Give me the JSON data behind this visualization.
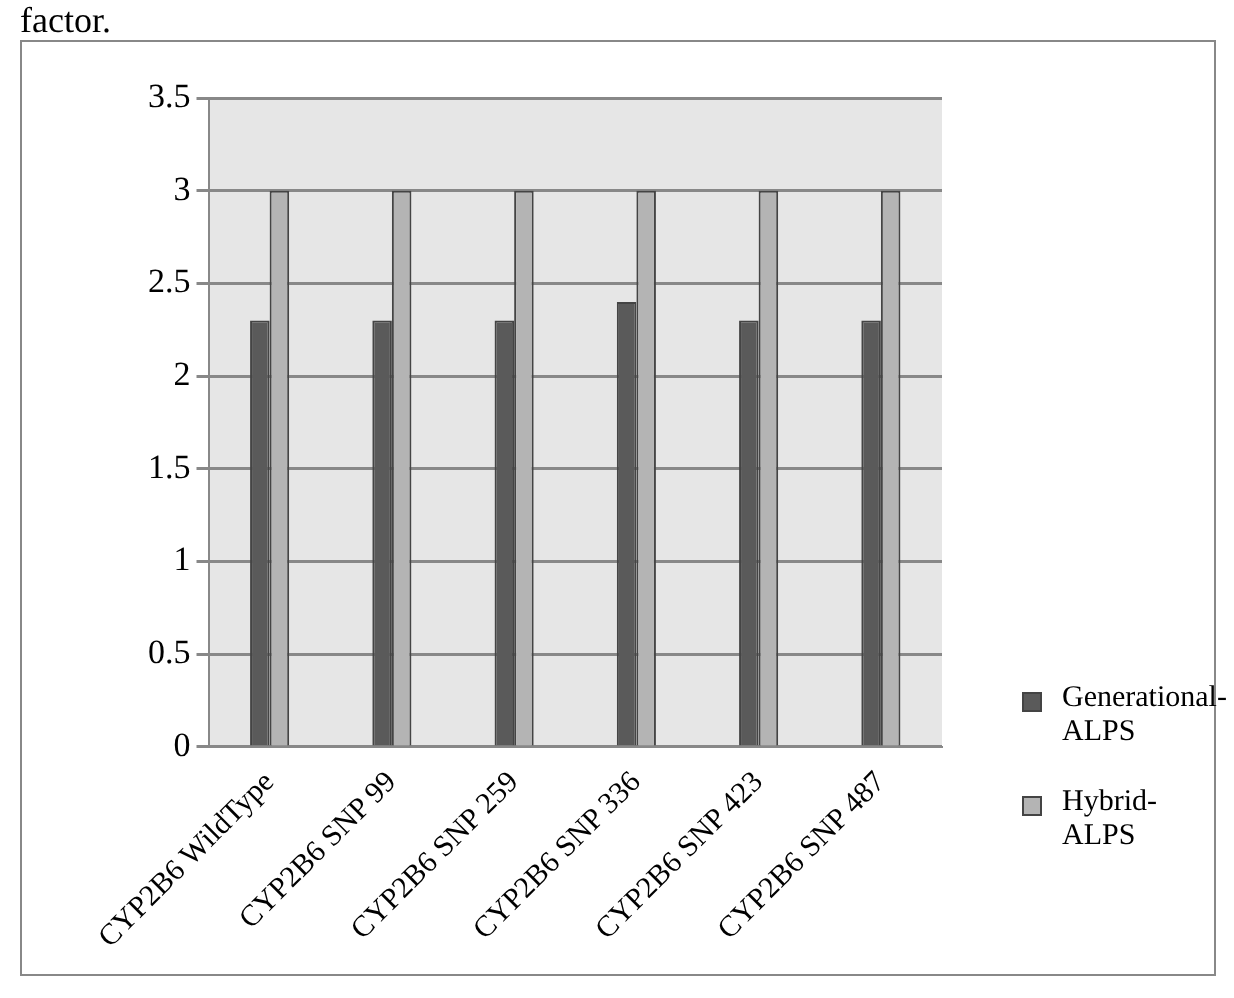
{
  "chart_data": {
    "type": "bar",
    "categories": [
      "CYP2B6 WildType",
      "CYP2B6 SNP 99",
      "CYP2B6 SNP 259",
      "CYP2B6 SNP 336",
      "CYP2B6 SNP 423",
      "CYP2B6 SNP 487"
    ],
    "series": [
      {
        "name": "Generational-ALPS",
        "color": "#5a5a5a",
        "values": [
          2.3,
          2.3,
          2.3,
          2.4,
          2.3,
          2.3
        ]
      },
      {
        "name": "Hybrid-ALPS",
        "color": "#b4b4b4",
        "values": [
          3,
          3,
          3,
          3,
          3,
          3
        ]
      }
    ],
    "ylim": [
      0,
      3.5
    ],
    "yticks": [
      0,
      0.5,
      1,
      1.5,
      2,
      2.5,
      3,
      3.5
    ],
    "grid": "y",
    "legend": "right",
    "annotations": [
      "factor."
    ]
  }
}
